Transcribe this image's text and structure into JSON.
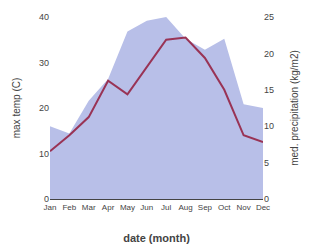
{
  "chart_data": {
    "type": "line",
    "categories": [
      "Jan",
      "Feb",
      "Mar",
      "Apr",
      "May",
      "Jun",
      "Jul",
      "Aug",
      "Sep",
      "Oct",
      "Nov",
      "Dec"
    ],
    "series": [
      {
        "type": "area",
        "axis": "y2",
        "color": "#b8bfe8",
        "values": [
          10.0,
          9.0,
          13.5,
          16.5,
          23.0,
          24.5,
          25.0,
          22.0,
          20.5,
          22.0,
          13.0,
          12.5
        ]
      },
      {
        "type": "line",
        "color": "#993355",
        "values": [
          10.5,
          14.0,
          18.0,
          26.0,
          23.0,
          29.0,
          35.0,
          35.5,
          31.0,
          24.0,
          14.0,
          12.5
        ]
      }
    ],
    "xlabel": "date (month)",
    "ylabel": "max temp (C)",
    "y2label": "med. precipitation (kg/m2)",
    "ylim": [
      0,
      40
    ],
    "yticks": [
      0,
      10,
      20,
      30,
      40
    ],
    "y2lim": [
      0,
      25
    ],
    "y2ticks": [
      0,
      5,
      10,
      15,
      20,
      25
    ],
    "grid": false
  }
}
